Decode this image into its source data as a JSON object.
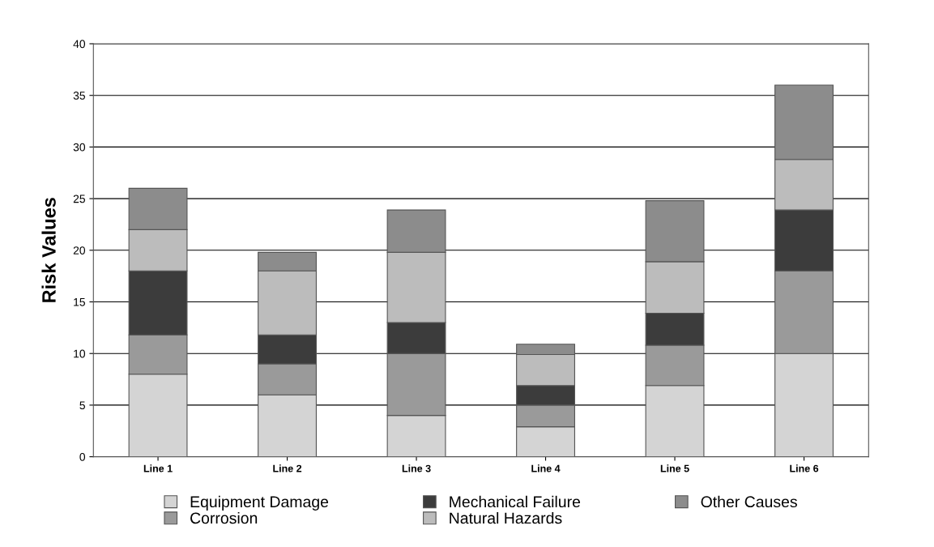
{
  "chart_data": {
    "type": "bar",
    "stacked": true,
    "ylabel": "Risk Values",
    "categories": [
      "Line 1",
      "Line 2",
      "Line 3",
      "Line 4",
      "Line 5",
      "Line 6"
    ],
    "series": [
      {
        "name": "Equipment Damage",
        "color": "#d4d4d4",
        "values": [
          8,
          6,
          4,
          2.9,
          6.9,
          10
        ]
      },
      {
        "name": "Corrosion",
        "color": "#9a9a9a",
        "values": [
          3.8,
          3,
          6,
          2.1,
          3.9,
          8
        ]
      },
      {
        "name": "Mechanical Failure",
        "color": "#3c3c3c",
        "values": [
          6.2,
          2.8,
          3,
          1.9,
          3.1,
          5.9
        ]
      },
      {
        "name": "Natural Hazards",
        "color": "#bcbcbc",
        "values": [
          4,
          6.2,
          6.8,
          3,
          5,
          4.9
        ]
      },
      {
        "name": "Other Causes",
        "color": "#8c8c8c",
        "values": [
          4,
          1.8,
          4.1,
          1,
          5.9,
          7.2
        ]
      }
    ],
    "ylim": [
      0,
      40
    ],
    "yticks": [
      0,
      5,
      10,
      15,
      20,
      25,
      30,
      35,
      40
    ],
    "grid": "y",
    "legend": "bottom"
  }
}
